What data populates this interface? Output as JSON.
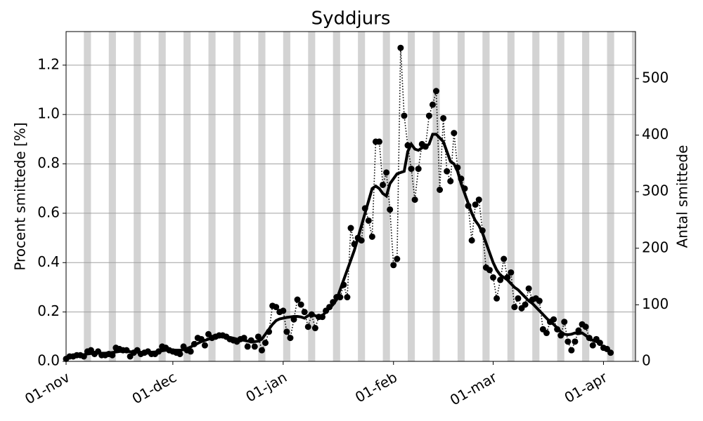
{
  "chart_data": {
    "type": "line",
    "title": "Syddjurs",
    "ylabel": "Procent smittede [%]",
    "y2label": "Antal smittede",
    "x": [
      0,
      1,
      2,
      3,
      4,
      5,
      6,
      7,
      8,
      9,
      10,
      11,
      12,
      13,
      14,
      15,
      16,
      17,
      18,
      19,
      20,
      21,
      22,
      23,
      24,
      25,
      26,
      27,
      28,
      29,
      30,
      31,
      32,
      33,
      34,
      35,
      36,
      37,
      38,
      39,
      40,
      41,
      42,
      43,
      44,
      45,
      46,
      47,
      48,
      49,
      50,
      51,
      52,
      53,
      54,
      55,
      56,
      57,
      58,
      59,
      60,
      61,
      62,
      63,
      64,
      65,
      66,
      67,
      68,
      69,
      70,
      71,
      72,
      73,
      74,
      75,
      76,
      77,
      78,
      79,
      80,
      81,
      82,
      83,
      84,
      85,
      86,
      87,
      88,
      89,
      90,
      91,
      92,
      93,
      94,
      95,
      96,
      97,
      98,
      99,
      100,
      101,
      102,
      103,
      104,
      105,
      106,
      107,
      108,
      109,
      110,
      111,
      112,
      113,
      114,
      115,
      116,
      117,
      118,
      119,
      120,
      121,
      122,
      123,
      124,
      125,
      126,
      127,
      128,
      129,
      130,
      131,
      132,
      133,
      134,
      135,
      136,
      137,
      138,
      139,
      140,
      141,
      142,
      143,
      144,
      145,
      146,
      147,
      148,
      149,
      150,
      151,
      152,
      153
    ],
    "series": [
      {
        "color": "#000000",
        "line_style": "dotted",
        "marker": "circle",
        "values": [
          0.01,
          0.02,
          0.02,
          0.025,
          0.025,
          0.02,
          0.04,
          0.045,
          0.03,
          0.04,
          0.025,
          0.025,
          0.03,
          0.025,
          0.055,
          0.05,
          0.045,
          0.045,
          0.02,
          0.035,
          0.045,
          0.03,
          0.035,
          0.04,
          0.03,
          0.03,
          0.04,
          0.06,
          0.055,
          0.045,
          0.04,
          0.035,
          0.03,
          0.06,
          0.045,
          0.04,
          0.07,
          0.095,
          0.09,
          0.065,
          0.11,
          0.095,
          0.1,
          0.105,
          0.105,
          0.1,
          0.09,
          0.085,
          0.08,
          0.09,
          0.095,
          0.06,
          0.085,
          0.06,
          0.1,
          0.045,
          0.075,
          0.12,
          0.225,
          0.22,
          0.2,
          0.205,
          0.12,
          0.095,
          0.17,
          0.25,
          0.23,
          0.2,
          0.14,
          0.19,
          0.135,
          0.18,
          0.18,
          0.205,
          0.22,
          0.24,
          0.26,
          0.26,
          0.31,
          0.26,
          0.54,
          0.475,
          0.5,
          0.49,
          0.62,
          0.57,
          0.505,
          0.89,
          0.89,
          0.715,
          0.765,
          0.615,
          0.39,
          0.415,
          1.27,
          0.995,
          0.875,
          0.78,
          0.655,
          0.78,
          0.88,
          0.87,
          0.995,
          1.04,
          1.095,
          0.695,
          0.985,
          0.77,
          0.73,
          0.925,
          0.785,
          0.74,
          0.7,
          0.63,
          0.49,
          0.635,
          0.655,
          0.53,
          0.38,
          0.37,
          0.34,
          0.255,
          0.33,
          0.415,
          0.34,
          0.36,
          0.22,
          0.255,
          0.215,
          0.23,
          0.295,
          0.25,
          0.255,
          0.245,
          0.13,
          0.115,
          0.16,
          0.17,
          0.13,
          0.105,
          0.16,
          0.08,
          0.045,
          0.08,
          0.125,
          0.15,
          0.14,
          0.095,
          0.065,
          0.09,
          0.075,
          0.055,
          0.05,
          0.035
        ]
      },
      {
        "color": "#000000",
        "line_style": "solid",
        "marker": "none",
        "values": [
          0.015,
          0.018,
          0.02,
          0.022,
          0.025,
          0.027,
          0.03,
          0.032,
          0.033,
          0.034,
          0.033,
          0.033,
          0.034,
          0.036,
          0.038,
          0.04,
          0.041,
          0.04,
          0.039,
          0.038,
          0.037,
          0.036,
          0.036,
          0.036,
          0.037,
          0.038,
          0.04,
          0.043,
          0.045,
          0.046,
          0.046,
          0.045,
          0.045,
          0.047,
          0.052,
          0.058,
          0.066,
          0.073,
          0.08,
          0.085,
          0.09,
          0.094,
          0.097,
          0.099,
          0.1,
          0.099,
          0.097,
          0.094,
          0.09,
          0.088,
          0.085,
          0.082,
          0.08,
          0.08,
          0.082,
          0.09,
          0.11,
          0.13,
          0.15,
          0.165,
          0.172,
          0.175,
          0.178,
          0.18,
          0.182,
          0.182,
          0.18,
          0.175,
          0.185,
          0.19,
          0.185,
          0.18,
          0.185,
          0.2,
          0.215,
          0.23,
          0.25,
          0.29,
          0.33,
          0.37,
          0.41,
          0.45,
          0.5,
          0.55,
          0.6,
          0.65,
          0.7,
          0.71,
          0.7,
          0.68,
          0.67,
          0.72,
          0.74,
          0.76,
          0.765,
          0.77,
          0.85,
          0.88,
          0.86,
          0.855,
          0.865,
          0.87,
          0.88,
          0.92,
          0.92,
          0.905,
          0.89,
          0.85,
          0.81,
          0.8,
          0.77,
          0.72,
          0.68,
          0.64,
          0.6,
          0.57,
          0.55,
          0.52,
          0.48,
          0.44,
          0.4,
          0.37,
          0.35,
          0.34,
          0.33,
          0.315,
          0.3,
          0.29,
          0.275,
          0.26,
          0.245,
          0.235,
          0.22,
          0.205,
          0.19,
          0.175,
          0.16,
          0.15,
          0.135,
          0.12,
          0.11,
          0.108,
          0.11,
          0.115,
          0.112,
          0.115,
          0.105,
          0.095,
          0.085,
          0.08,
          0.075,
          null,
          null,
          null
        ]
      }
    ],
    "xlim": [
      0,
      160
    ],
    "xticks": [
      {
        "value": 0,
        "label": "01-nov"
      },
      {
        "value": 30,
        "label": "01-dec"
      },
      {
        "value": 61,
        "label": "01-jan"
      },
      {
        "value": 92,
        "label": "01-feb"
      },
      {
        "value": 120,
        "label": "01-mar"
      },
      {
        "value": 151,
        "label": "01-apr"
      }
    ],
    "ylim": [
      0,
      1.336
    ],
    "yticks": [
      {
        "value": 0,
        "label": "0.0"
      },
      0.2,
      0.4,
      0.6,
      0.8,
      {
        "value": 1,
        "label": "1.0"
      },
      1.2
    ],
    "y2lim": [
      0,
      583
    ],
    "y2ticks": [
      0,
      100,
      200,
      300,
      400,
      500
    ],
    "grid": true,
    "weekend_starts": [
      5,
      12,
      19,
      26,
      33,
      40,
      47,
      54,
      61,
      68,
      75,
      82,
      89,
      96,
      103,
      110,
      117,
      124,
      131,
      138,
      145,
      152,
      159
    ],
    "weekend_color": "#d3d3d3"
  }
}
